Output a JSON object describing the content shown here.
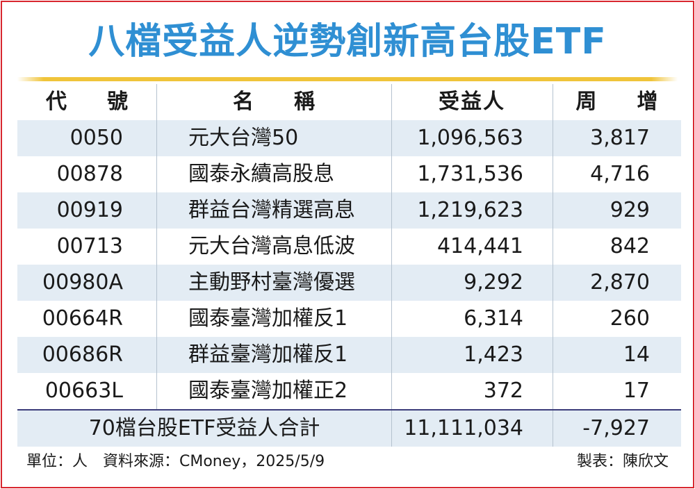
{
  "title": "八檔受益人逆勢創新高台股ETF",
  "columns": [
    "代　號",
    "名　稱",
    "受益人",
    "周　增"
  ],
  "rows": [
    {
      "code": "0050",
      "name": "元大台灣50",
      "holders": "1,096,563",
      "weekly_change": "3,817"
    },
    {
      "code": "00878",
      "name": "國泰永續高股息",
      "holders": "1,731,536",
      "weekly_change": "4,716"
    },
    {
      "code": "00919",
      "name": "群益台灣精選高息",
      "holders": "1,219,623",
      "weekly_change": "929"
    },
    {
      "code": "00713",
      "name": "元大台灣高息低波",
      "holders": "414,441",
      "weekly_change": "842"
    },
    {
      "code": "00980A",
      "name": "主動野村臺灣優選",
      "holders": "9,292",
      "weekly_change": "2,870"
    },
    {
      "code": "00664R",
      "name": "國泰臺灣加權反1",
      "holders": "6,314",
      "weekly_change": "260"
    },
    {
      "code": "00686R",
      "name": "群益臺灣加權反1",
      "holders": "1,423",
      "weekly_change": "14"
    },
    {
      "code": "00663L",
      "name": "國泰臺灣加權正2",
      "holders": "372",
      "weekly_change": "17"
    }
  ],
  "total": {
    "label": "70檔台股ETF受益人合計",
    "holders": "11,111,034",
    "weekly_change": "-7,927"
  },
  "footer": {
    "source": "單位：人　資料來源：CMoney，2025/5/9",
    "credit": "製表：陳欣文"
  },
  "colors": {
    "title": "#2f8fd3",
    "accent_line": "#f0c43a",
    "row_stripe": "#e3ecf4",
    "border": "#d8262f"
  }
}
